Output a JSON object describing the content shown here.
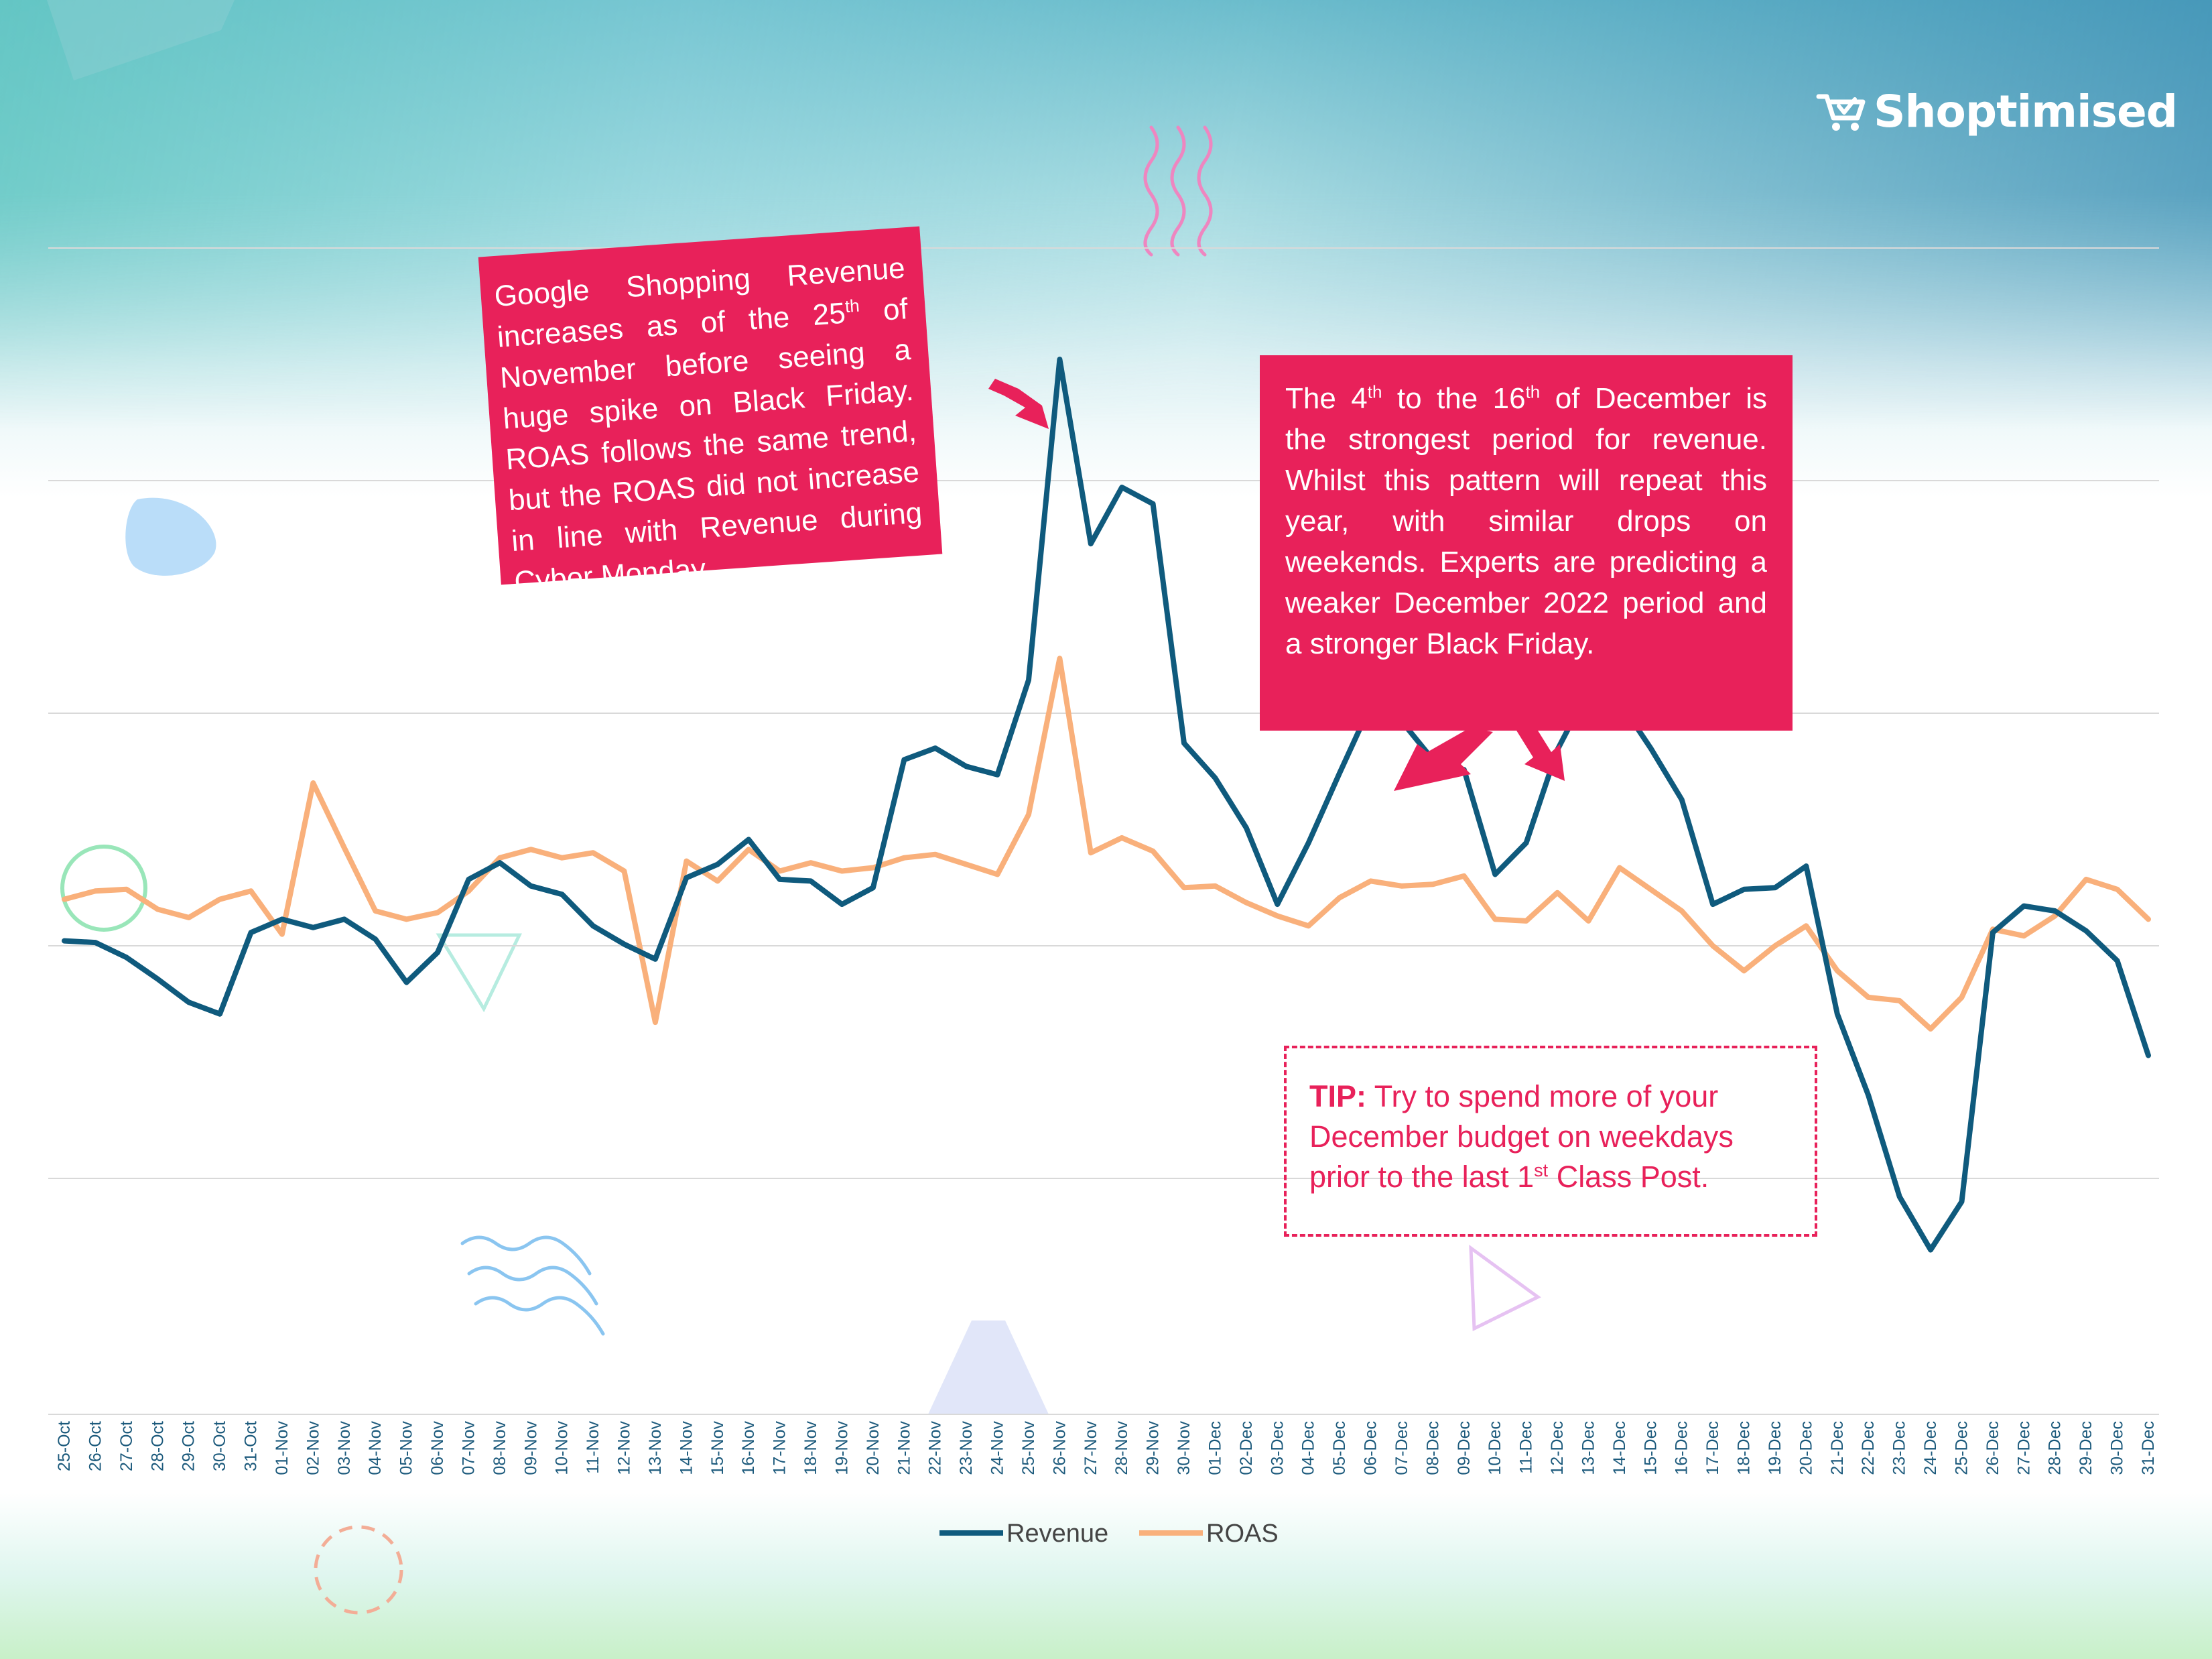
{
  "brand": {
    "name": "Shoptimised",
    "icon": "cart-icon"
  },
  "callouts": {
    "black_friday": {
      "line1_a": "Google Shopping Revenue increases as of the 25",
      "line1_sup": "th",
      "line1_b": " of November before seeing a huge spike on Black Friday. ROAS follows the same trend, but the ROAS did not increase in line with Revenue during Cyber Monday."
    },
    "december": {
      "a": "The 4",
      "a_sup": "th",
      "b": " to the 16",
      "b_sup": "th",
      "c": " of December is the strongest period for revenue. Whilst this pattern will repeat this year, with similar drops on weekends. Experts are predicting a weaker December 2022 period and a stronger Black Friday."
    },
    "tip": {
      "label": "TIP:",
      "a": " Try to spend more of your December budget on weekdays prior to the last 1",
      "a_sup": "st",
      "b": " Class Post."
    }
  },
  "colors": {
    "revenue": "#0f5a7d",
    "roas": "#f9b07b",
    "accent": "#e8215a",
    "grid": "#d9d9d9"
  },
  "chart_data": {
    "type": "line",
    "categories": [
      "25-Oct",
      "26-Oct",
      "27-Oct",
      "28-Oct",
      "29-Oct",
      "30-Oct",
      "31-Oct",
      "01-Nov",
      "02-Nov",
      "03-Nov",
      "04-Nov",
      "05-Nov",
      "06-Nov",
      "07-Nov",
      "08-Nov",
      "09-Nov",
      "10-Nov",
      "11-Nov",
      "12-Nov",
      "13-Nov",
      "14-Nov",
      "15-Nov",
      "16-Nov",
      "17-Nov",
      "18-Nov",
      "19-Nov",
      "20-Nov",
      "21-Nov",
      "22-Nov",
      "23-Nov",
      "24-Nov",
      "25-Nov",
      "26-Nov",
      "27-Nov",
      "28-Nov",
      "29-Nov",
      "30-Nov",
      "01-Dec",
      "02-Dec",
      "03-Dec",
      "04-Dec",
      "05-Dec",
      "06-Dec",
      "07-Dec",
      "08-Dec",
      "09-Dec",
      "10-Dec",
      "11-Dec",
      "12-Dec",
      "13-Dec",
      "14-Dec",
      "15-Dec",
      "16-Dec",
      "17-Dec",
      "18-Dec",
      "19-Dec",
      "20-Dec",
      "21-Dec",
      "22-Dec",
      "23-Dec",
      "24-Dec",
      "25-Dec",
      "26-Dec",
      "27-Dec",
      "28-Dec",
      "29-Dec",
      "30-Dec",
      "31-Dec"
    ],
    "series": [
      {
        "name": "Revenue",
        "values": [
          2.85,
          2.84,
          2.75,
          2.62,
          2.48,
          2.41,
          2.9,
          2.98,
          2.93,
          2.98,
          2.86,
          2.6,
          2.78,
          3.22,
          3.32,
          3.18,
          3.13,
          2.94,
          2.83,
          2.74,
          3.23,
          3.31,
          3.46,
          3.22,
          3.21,
          3.07,
          3.17,
          3.94,
          4.01,
          3.9,
          3.85,
          4.42,
          6.35,
          5.24,
          5.58,
          5.48,
          4.04,
          3.83,
          3.53,
          3.07,
          3.44,
          3.86,
          4.27,
          4.17,
          3.94,
          3.88,
          3.25,
          3.44,
          4.0,
          4.36,
          4.29,
          4.01,
          3.7,
          3.07,
          3.16,
          3.17,
          3.3,
          2.41,
          1.92,
          1.31,
          0.99,
          1.28,
          2.9,
          3.06,
          3.03,
          2.91,
          2.73,
          2.16
        ]
      },
      {
        "name": "ROAS",
        "values": [
          3.1,
          3.15,
          3.16,
          3.04,
          2.99,
          3.1,
          3.15,
          2.89,
          3.8,
          3.41,
          3.03,
          2.98,
          3.02,
          3.15,
          3.35,
          3.4,
          3.35,
          3.38,
          3.27,
          2.36,
          3.33,
          3.21,
          3.4,
          3.27,
          3.32,
          3.27,
          3.29,
          3.35,
          3.37,
          3.31,
          3.25,
          3.61,
          4.55,
          3.38,
          3.47,
          3.39,
          3.17,
          3.18,
          3.08,
          3.0,
          2.94,
          3.11,
          3.21,
          3.18,
          3.19,
          3.24,
          2.98,
          2.97,
          3.14,
          2.97,
          3.29,
          3.16,
          3.03,
          2.82,
          2.67,
          2.82,
          2.94,
          2.67,
          2.51,
          2.49,
          2.32,
          2.51,
          2.92,
          2.88,
          3.0,
          3.22,
          3.16,
          2.98
        ]
      }
    ],
    "ylim": [
      0,
      7
    ],
    "grid": true,
    "legend": "bottom-center"
  }
}
